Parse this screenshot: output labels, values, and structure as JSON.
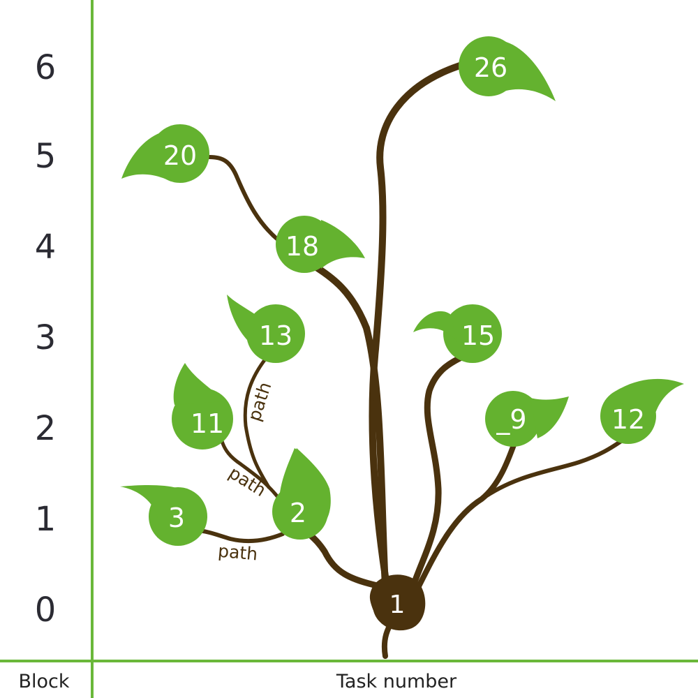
{
  "axis": {
    "y_caption": "Block",
    "x_caption": "Task number",
    "block_levels": [
      "0",
      "1",
      "2",
      "3",
      "4",
      "5",
      "6"
    ]
  },
  "root": {
    "label": "1"
  },
  "leaves": [
    {
      "id": "leaf-2",
      "label": "2"
    },
    {
      "id": "leaf-3",
      "label": "3"
    },
    {
      "id": "leaf-9",
      "label": "_9"
    },
    {
      "id": "leaf-11",
      "label": "11"
    },
    {
      "id": "leaf-12",
      "label": "12"
    },
    {
      "id": "leaf-13",
      "label": "13"
    },
    {
      "id": "leaf-15",
      "label": "15"
    },
    {
      "id": "leaf-18",
      "label": "18"
    },
    {
      "id": "leaf-20",
      "label": "20"
    },
    {
      "id": "leaf-26",
      "label": "26"
    }
  ],
  "path_labels": [
    "path",
    "path",
    "path"
  ],
  "colors": {
    "axis_line": "#6ab83a",
    "leaf_fill": "#64b22f",
    "stem": "#4a320e",
    "label_text": "#ffffff"
  }
}
